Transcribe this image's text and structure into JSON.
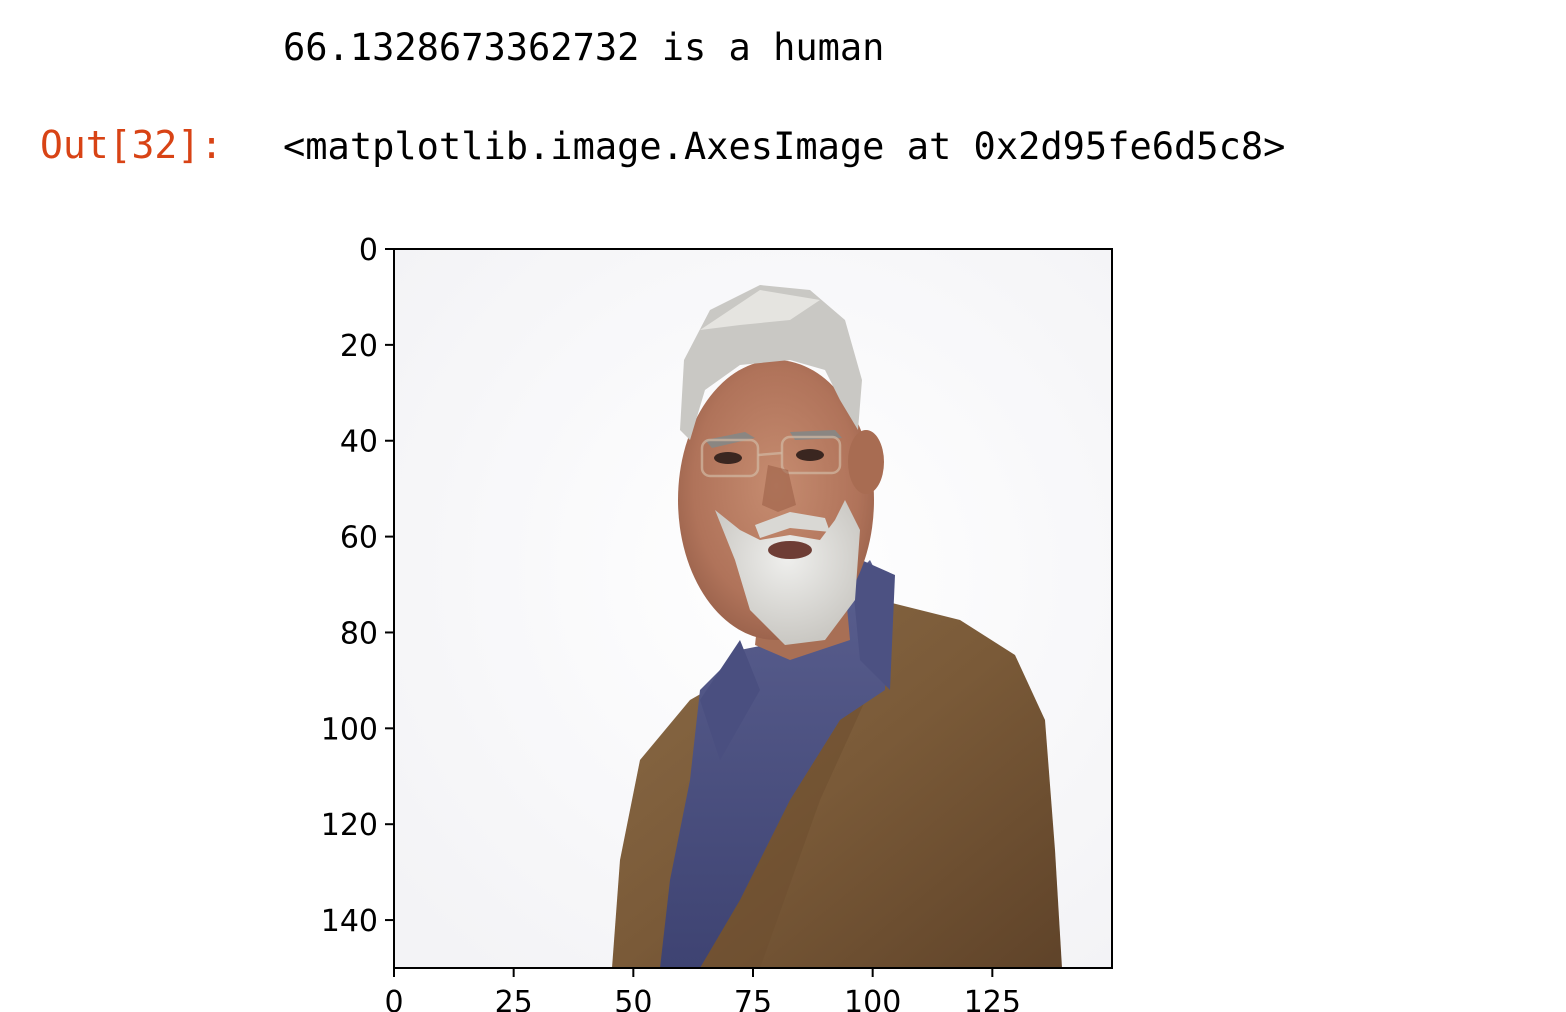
{
  "cell": {
    "stdout": "66.1328673362732 is a human",
    "out_prompt": "Out[32]:",
    "out_repr": "<matplotlib.image.AxesImage at 0x2d95fe6d5c8>"
  },
  "colors": {
    "prompt": "#d84315",
    "text": "#000000",
    "axes": "#000000"
  },
  "chart_data": {
    "type": "image",
    "x_ticks": [
      "0",
      "25",
      "50",
      "75",
      "100",
      "125"
    ],
    "y_ticks": [
      "0",
      "20",
      "40",
      "60",
      "80",
      "100",
      "120",
      "140"
    ],
    "x_tick_values": [
      0,
      25,
      50,
      75,
      100,
      125
    ],
    "y_tick_values": [
      0,
      20,
      40,
      60,
      80,
      100,
      120,
      140
    ],
    "xlim": [
      0,
      150
    ],
    "ylim": [
      150,
      0
    ],
    "image_subject": "portrait-photo"
  }
}
